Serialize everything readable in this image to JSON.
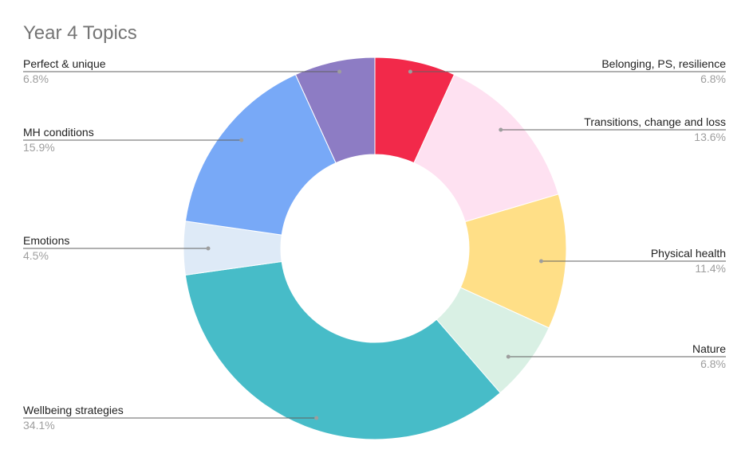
{
  "chart_data": {
    "type": "pie",
    "donut": true,
    "title": "Year 4 Topics",
    "slices": [
      {
        "label": "Belonging, PS, resilience",
        "pct_label": "6.8%",
        "value": 6.8,
        "color": "#F2294A"
      },
      {
        "label": "Transitions, change and loss",
        "pct_label": "13.6%",
        "value": 13.6,
        "color": "#FEE1F1"
      },
      {
        "label": "Physical health",
        "pct_label": "11.4%",
        "value": 11.4,
        "color": "#FFDF87"
      },
      {
        "label": "Nature",
        "pct_label": "6.8%",
        "value": 6.8,
        "color": "#D9F0E4"
      },
      {
        "label": "Wellbeing strategies",
        "pct_label": "34.1%",
        "value": 34.1,
        "color": "#47BCC8"
      },
      {
        "label": "Emotions",
        "pct_label": "4.5%",
        "value": 4.5,
        "color": "#DEEAF7"
      },
      {
        "label": "MH conditions",
        "pct_label": "15.9%",
        "value": 15.9,
        "color": "#78A9F7"
      },
      {
        "label": "Perfect & unique",
        "pct_label": "6.8%",
        "value": 6.8,
        "color": "#8D7CC4"
      }
    ],
    "legend": "outside labels with leader lines"
  }
}
